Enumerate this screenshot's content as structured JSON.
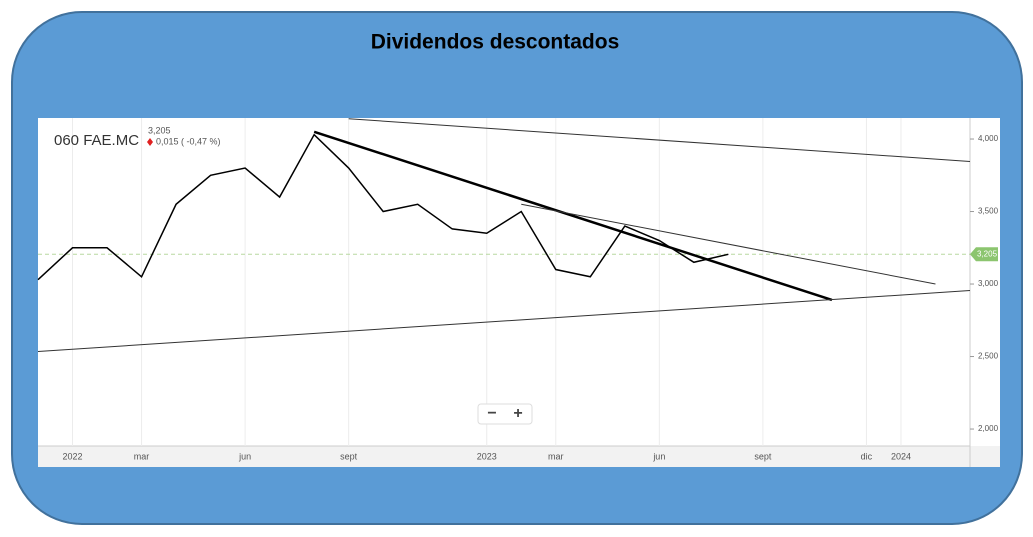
{
  "chart_data": {
    "type": "line",
    "title": "Dividendos descontados",
    "ticker": "060 FAE.MC",
    "last_price": "3,205",
    "change": "0,015 ( -0,47 %)",
    "x": [
      "2021-12",
      "2022-01",
      "2022-02",
      "2022-03",
      "2022-04",
      "2022-05",
      "2022-06",
      "2022-07",
      "2022-08",
      "2022-09",
      "2022-10",
      "2022-11",
      "2022-12",
      "2023-01",
      "2023-02",
      "2023-03",
      "2023-04",
      "2023-05",
      "2023-06",
      "2023-07",
      "2023-08"
    ],
    "series": [
      {
        "color": "#000000",
        "values": [
          3.03,
          3.25,
          3.25,
          3.05,
          3.55,
          3.75,
          3.8,
          3.6,
          4.03,
          3.8,
          3.5,
          3.55,
          3.38,
          3.35,
          3.5,
          3.1,
          3.05,
          3.4,
          3.3,
          3.15,
          3.205
        ]
      }
    ],
    "trend_lines": [
      {
        "x": [
          "2022-08",
          "2023-11"
        ],
        "values": [
          4.05,
          2.89
        ],
        "color": "#000000"
      },
      {
        "x": [
          "2023-02",
          "2024-02"
        ],
        "values": [
          3.55,
          3.0
        ],
        "color": "#333333"
      },
      {
        "x": [
          "2022-09",
          "2024-03"
        ],
        "values": [
          4.14,
          3.845
        ],
        "color": "#333333"
      },
      {
        "x": [
          "2021-12",
          "2024-03"
        ],
        "values": [
          2.535,
          2.955
        ],
        "color": "#333333"
      }
    ],
    "price_marker": {
      "value": 3.205,
      "label": "3,205",
      "color": "#8cc56f"
    },
    "xlim": [
      "2021-12",
      "2024-03"
    ],
    "xticks": [
      {
        "value": "2022-01",
        "label": "2022"
      },
      {
        "value": "2022-03",
        "label": "mar"
      },
      {
        "value": "2022-06",
        "label": "jun"
      },
      {
        "value": "2022-09",
        "label": "sept"
      },
      {
        "value": "2023-01",
        "label": "2023"
      },
      {
        "value": "2023-03",
        "label": "mar"
      },
      {
        "value": "2023-06",
        "label": "jun"
      },
      {
        "value": "2023-09",
        "label": "sept"
      },
      {
        "value": "2023-12",
        "label": "dic"
      },
      {
        "value": "2024-01",
        "label": "2024"
      }
    ],
    "ylim": [
      1.883,
      4.145
    ],
    "yticks": [
      {
        "value": 2,
        "label": "2,000"
      },
      {
        "value": 2.5,
        "label": "2,500"
      },
      {
        "value": 3,
        "label": "3,000"
      },
      {
        "value": 3.5,
        "label": "3,500"
      },
      {
        "value": 4,
        "label": "4,000"
      }
    ],
    "grid": true,
    "zoom_controls": [
      "−",
      "+"
    ]
  }
}
